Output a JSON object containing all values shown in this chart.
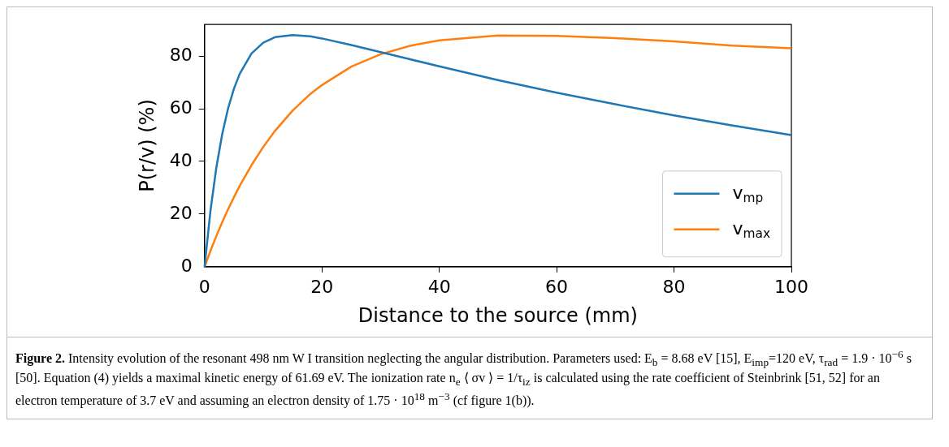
{
  "chart_data": {
    "type": "line",
    "xlabel": "Distance to the source (mm)",
    "ylabel": "P(r/v) (%)",
    "x": [
      0,
      1,
      2,
      3,
      4,
      5,
      6,
      8,
      10,
      12,
      15,
      18,
      20,
      25,
      30,
      35,
      40,
      50,
      60,
      70,
      80,
      90,
      100
    ],
    "series": [
      {
        "name": "v$_{mp}$",
        "color": "#1f77b4",
        "values": [
          0,
          21.2,
          37.6,
          50.3,
          60.1,
          67.6,
          73.3,
          81.0,
          85.1,
          87.2,
          88.0,
          87.5,
          86.7,
          84.2,
          81.5,
          78.8,
          76.1,
          70.9,
          66.1,
          61.7,
          57.5,
          53.6,
          50.0
        ]
      },
      {
        "name": "v$_{max}$",
        "color": "#ff7f0e",
        "values": [
          0,
          6.0,
          11.6,
          16.9,
          21.8,
          26.4,
          30.8,
          38.6,
          45.5,
          51.6,
          59.3,
          65.6,
          69.0,
          76.0,
          80.7,
          83.9,
          86.0,
          87.8,
          87.7,
          86.8,
          85.6,
          84.0,
          83.0
        ]
      }
    ],
    "xlim": [
      0,
      100
    ],
    "xticks": [
      0,
      20,
      40,
      60,
      80,
      100
    ],
    "ylim": [
      0,
      92
    ],
    "yticks": [
      0,
      20,
      40,
      60,
      80
    ],
    "grid": false,
    "legend": "bottom right",
    "marker": "none",
    "line_style": "solid",
    "annotations": [
      "Figure 2.",
      "Intensity evolution of the resonant 498 nm W I transition neglecting the angular distribution. Parameters used: E$_{b}$ = 8.68 eV [15], E$_{imp}$=120 eV, τ$_{rad}$ = 1.9 · 10$^{−6}$ s [50]. Equation (4) yields a maximal kinetic energy of 61.69 eV. The ionization rate n$_{e}$ ⟨ σv ⟩ = 1/τ$_{iz}$ is calculated using the rate coefficient of Steinbrink [51, 52] for an electron temperature of 3.7 eV and assuming an electron density of 1.75 · 10$^{18}$ m$^{−3}$ (cf figure 1(b))."
    ]
  }
}
